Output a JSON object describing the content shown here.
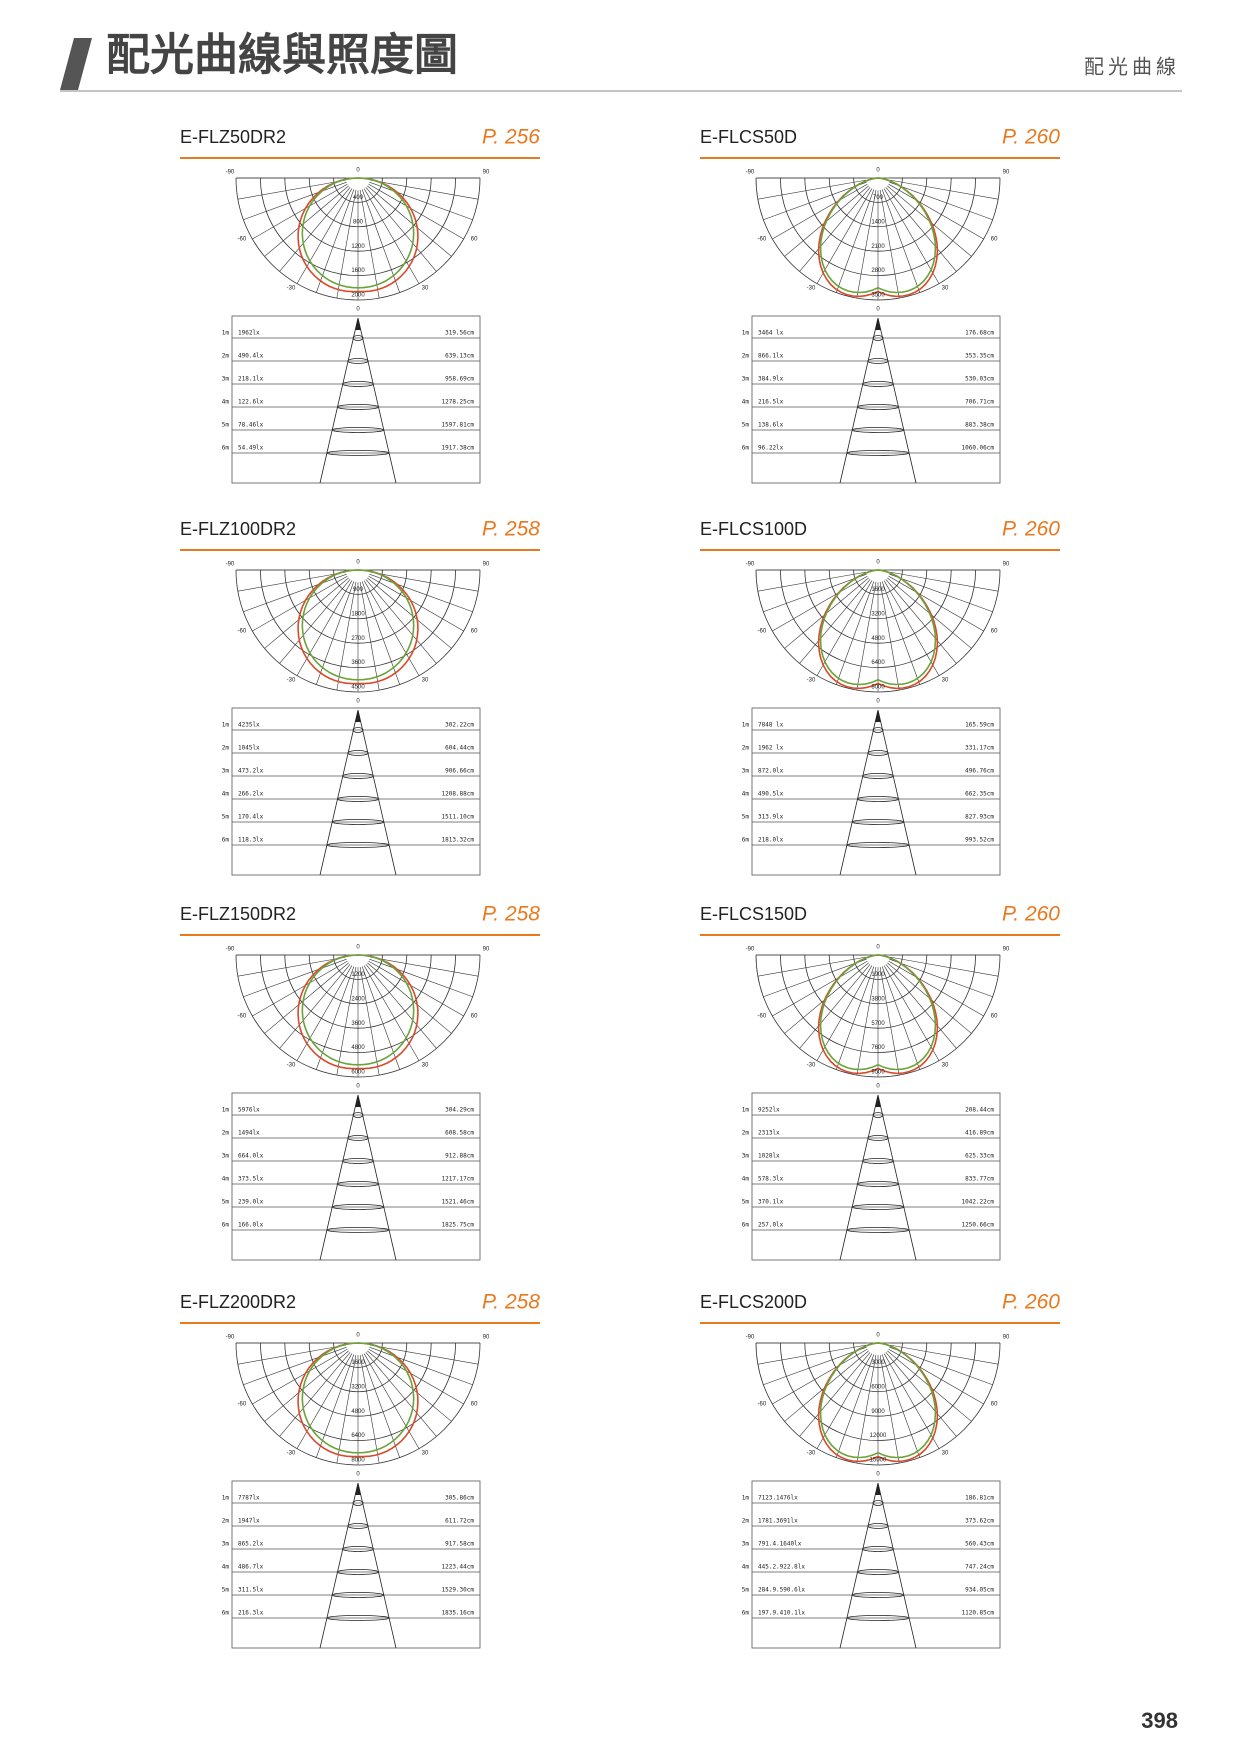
{
  "header": {
    "title": "配光曲線與照度圖",
    "section": "配光曲線"
  },
  "page_number": "398",
  "angle_labels": [
    "-90",
    "90",
    "-60",
    "60",
    "-30",
    "30",
    "0"
  ],
  "distances": [
    "1m",
    "2m",
    "3m",
    "4m",
    "5m",
    "6m"
  ],
  "panels": [
    {
      "model": "E-FLZ50DR2",
      "page": "P. 256",
      "rings": [
        "400",
        "800",
        "1200",
        "1600",
        "2000"
      ],
      "lux": [
        "1962lx",
        "490.4lx",
        "218.1lx",
        "122.6lx",
        "78.46lx",
        "54.49lx"
      ],
      "diameter": [
        "319.56cm",
        "639.13cm",
        "958.69cm",
        "1278.25cm",
        "1597.81cm",
        "1917.38cm"
      ]
    },
    {
      "model": "E-FLCS50D",
      "page": "P. 260",
      "rings": [
        "700",
        "1400",
        "2100",
        "2800",
        "3500"
      ],
      "lux": [
        "3464 lx",
        "866.1lx",
        "384.9lx",
        "216.5lx",
        "138.6lx",
        "96.22lx"
      ],
      "diameter": [
        "176.68cm",
        "353.35cm",
        "530.03cm",
        "706.71cm",
        "883.38cm",
        "1060.06cm"
      ]
    },
    {
      "model": "E-FLZ100DR2",
      "page": "P. 258",
      "rings": [
        "900",
        "1800",
        "2700",
        "3600",
        "4500"
      ],
      "lux": [
        "4235lx",
        "1045lx",
        "473.2lx",
        "266.2lx",
        "170.4lx",
        "118.3lx"
      ],
      "diameter": [
        "302.22cm",
        "604.44cm",
        "906.66cm",
        "1208.88cm",
        "1511.10cm",
        "1813.32cm"
      ]
    },
    {
      "model": "E-FLCS100D",
      "page": "P. 260",
      "rings": [
        "1600",
        "3200",
        "4800",
        "6400",
        "8000"
      ],
      "lux": [
        "7848 lx",
        "1962 lx",
        "872.0lx",
        "490.5lx",
        "313.9lx",
        "218.0lx"
      ],
      "diameter": [
        "165.59cm",
        "331.17cm",
        "496.76cm",
        "662.35cm",
        "827.93cm",
        "993.52cm"
      ]
    },
    {
      "model": "E-FLZ150DR2",
      "page": "P. 258",
      "rings": [
        "1200",
        "2400",
        "3600",
        "4800",
        "6000"
      ],
      "lux": [
        "5976lx",
        "1494lx",
        "664.0lx",
        "373.5lx",
        "239.0lx",
        "166.0lx"
      ],
      "diameter": [
        "304.29cm",
        "608.58cm",
        "912.88cm",
        "1217.17cm",
        "1521.46cm",
        "1825.75cm"
      ]
    },
    {
      "model": "E-FLCS150D",
      "page": "P. 260",
      "rings": [
        "1900",
        "3800",
        "5700",
        "7600",
        "9500"
      ],
      "lux": [
        "9252lx",
        "2313lx",
        "1028lx",
        "578.3lx",
        "370.1lx",
        "257.0lx"
      ],
      "diameter": [
        "208.44cm",
        "416.89cm",
        "625.33cm",
        "833.77cm",
        "1042.22cm",
        "1250.66cm"
      ]
    },
    {
      "model": "E-FLZ200DR2",
      "page": "P. 258",
      "rings": [
        "1600",
        "3200",
        "4800",
        "6400",
        "8000"
      ],
      "lux": [
        "7787lx",
        "1947lx",
        "865.2lx",
        "486.7lx",
        "311.5lx",
        "216.3lx"
      ],
      "diameter": [
        "305.86cm",
        "611.72cm",
        "917.58cm",
        "1223.44cm",
        "1529.30cm",
        "1835.16cm"
      ]
    },
    {
      "model": "E-FLCS200D",
      "page": "P. 260",
      "rings": [
        "3000",
        "6000",
        "9000",
        "12000",
        "15000"
      ],
      "lux": [
        "7123.1476lx",
        "1781.3691lx",
        "791.4.1640lx",
        "445.2.922.8lx",
        "284.9.590.6lx",
        "197.9.410.1lx"
      ],
      "diameter": [
        "186.81cm",
        "373.62cm",
        "560.43cm",
        "747.24cm",
        "934.05cm",
        "1120.85cm"
      ]
    }
  ]
}
